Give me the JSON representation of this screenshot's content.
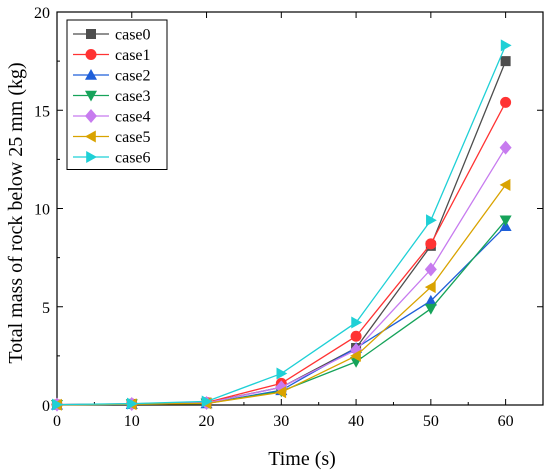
{
  "chart_data": {
    "type": "line",
    "title": "",
    "xlabel": "Time (s)",
    "ylabel": "Total mass of rock below 25 mm (kg)",
    "xlim": [
      0,
      65
    ],
    "ylim": [
      0,
      20
    ],
    "xticks": [
      0,
      10,
      20,
      30,
      40,
      50,
      60
    ],
    "yticks": [
      0,
      5,
      10,
      15,
      20
    ],
    "grid": false,
    "legend_position": "top-left",
    "x": [
      0,
      10,
      20,
      30,
      40,
      50,
      60
    ],
    "series": [
      {
        "name": "case0",
        "color": "#4d4d4d",
        "marker": "square",
        "values": [
          0.02,
          0.05,
          0.12,
          0.9,
          2.9,
          8.1,
          17.5
        ]
      },
      {
        "name": "case1",
        "color": "#ff3333",
        "marker": "circle",
        "values": [
          0.02,
          0.06,
          0.13,
          1.1,
          3.5,
          8.2,
          15.4
        ]
      },
      {
        "name": "case2",
        "color": "#1f5fd9",
        "marker": "triangle-up",
        "values": [
          0.01,
          0.04,
          0.08,
          0.75,
          2.9,
          5.3,
          9.1
        ]
      },
      {
        "name": "case3",
        "color": "#16a35a",
        "marker": "triangle-down",
        "values": [
          0.01,
          0.04,
          0.08,
          0.7,
          2.2,
          4.9,
          9.4
        ]
      },
      {
        "name": "case4",
        "color": "#c77bef",
        "marker": "diamond",
        "values": [
          0.02,
          0.05,
          0.1,
          0.9,
          2.8,
          6.9,
          13.1
        ]
      },
      {
        "name": "case5",
        "color": "#d9a300",
        "marker": "triangle-left",
        "values": [
          0.01,
          0.04,
          0.08,
          0.65,
          2.5,
          6.0,
          11.2
        ]
      },
      {
        "name": "case6",
        "color": "#1fd0d6",
        "marker": "triangle-right",
        "values": [
          0.02,
          0.07,
          0.18,
          1.6,
          4.2,
          9.4,
          18.3
        ]
      }
    ]
  }
}
